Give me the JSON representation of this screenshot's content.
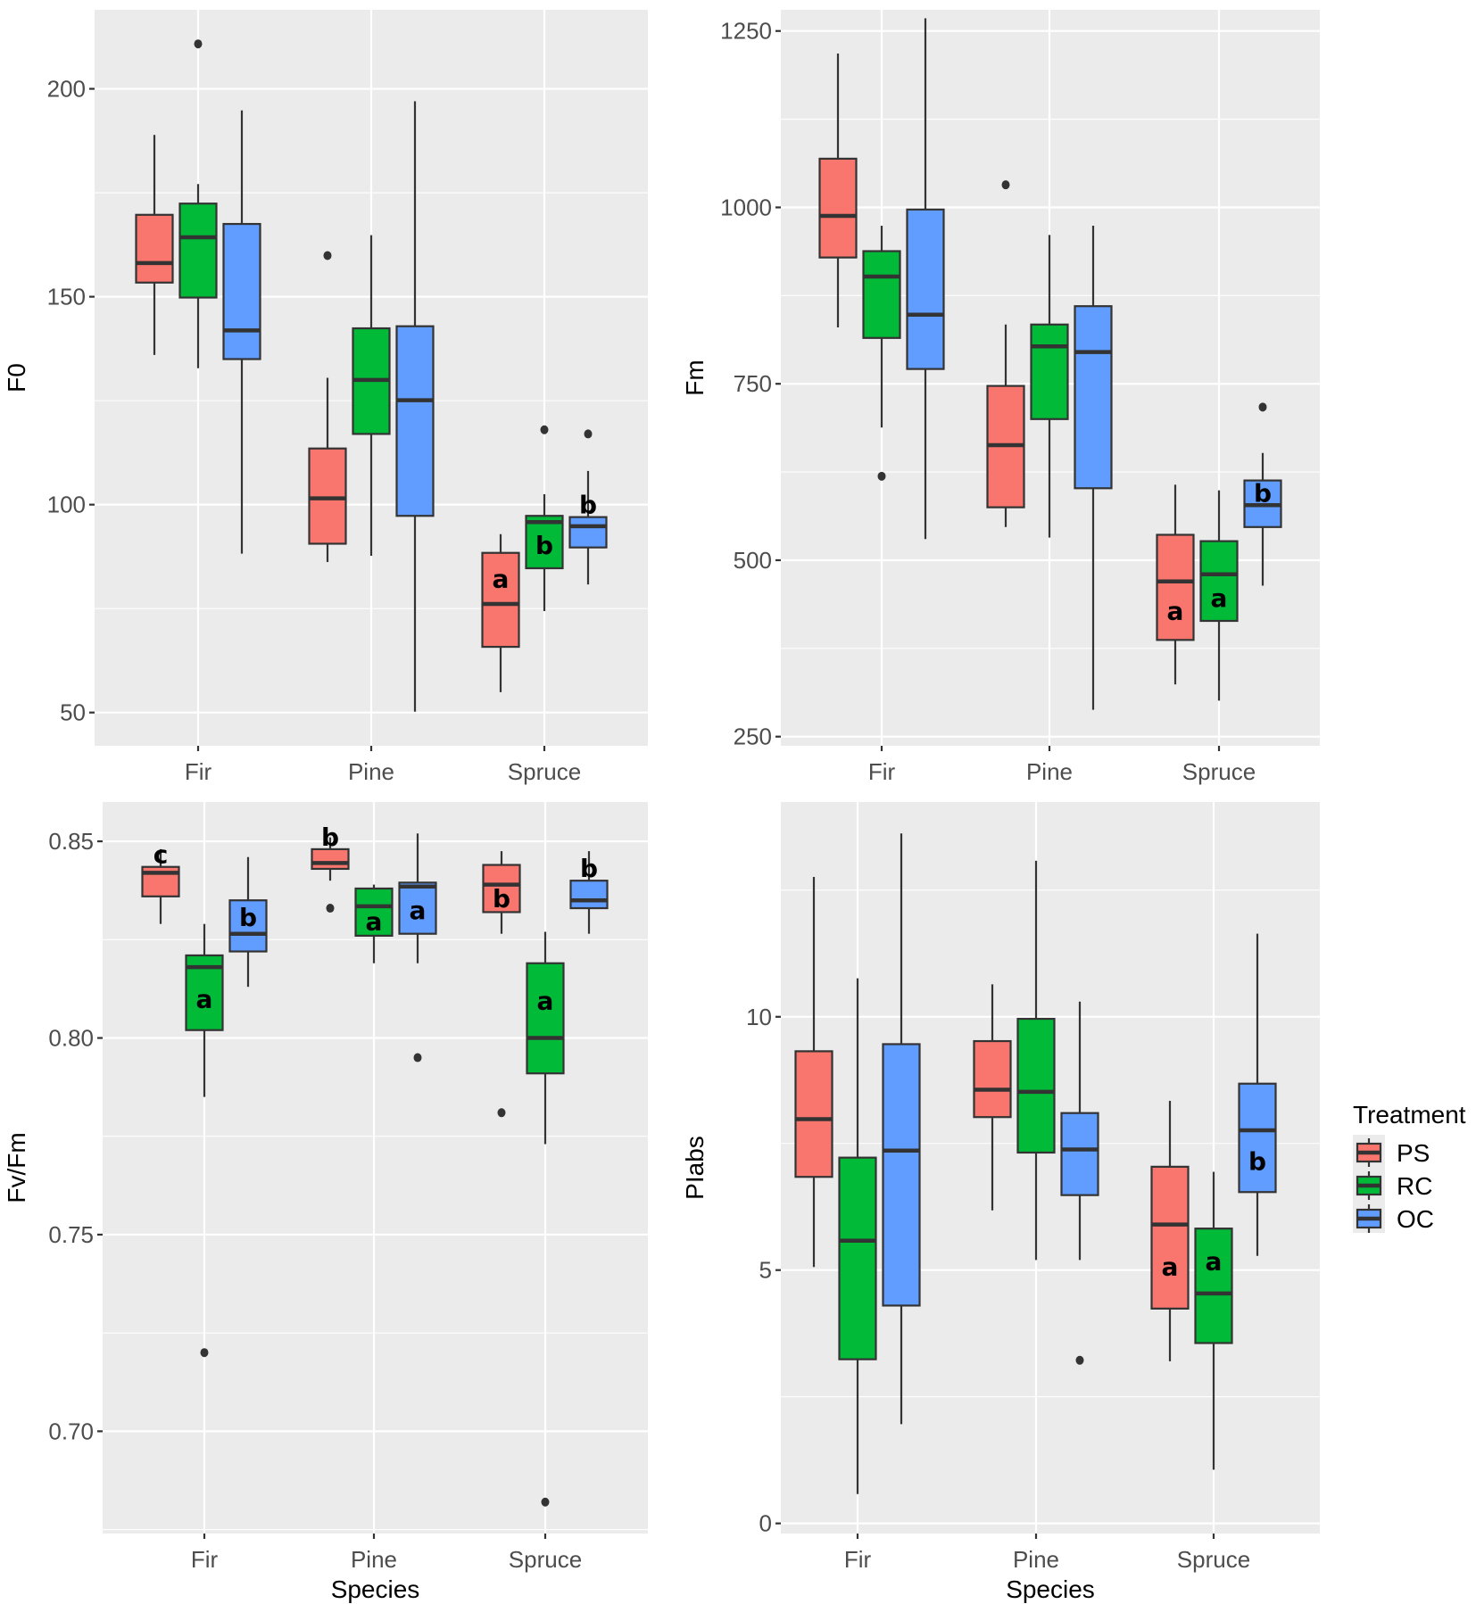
{
  "chart_data": [
    {
      "type": "box",
      "ylabel": "F0",
      "xlabel": "",
      "categories": [
        "Fir",
        "Pine",
        "Spruce"
      ],
      "ylim": [
        42,
        219
      ],
      "yticks": [
        50,
        100,
        150,
        200
      ],
      "ytick_labels": [
        "50",
        "100",
        "150",
        "200"
      ],
      "grid": true,
      "series": [
        {
          "name": "PS",
          "boxes": [
            {
              "min": 136,
              "q1": 153.4,
              "median": 158.1,
              "q3": 169.7,
              "max": 188.9,
              "outliers": [],
              "label": ""
            },
            {
              "min": 86.2,
              "q1": 90.6,
              "median": 101.5,
              "q3": 113.5,
              "max": 130.5,
              "outliers": [
                159.9
              ],
              "label": ""
            },
            {
              "min": 54.9,
              "q1": 65.8,
              "median": 76.1,
              "q3": 88.4,
              "max": 92.9,
              "outliers": [],
              "label": "a"
            }
          ]
        },
        {
          "name": "RC",
          "boxes": [
            {
              "min": 132.8,
              "q1": 149.8,
              "median": 164.3,
              "q3": 172.4,
              "max": 177.1,
              "outliers": [
                210.8
              ],
              "label": ""
            },
            {
              "min": 87.7,
              "q1": 117,
              "median": 130,
              "q3": 142.4,
              "max": 164.8,
              "outliers": [],
              "label": ""
            },
            {
              "min": 74.4,
              "q1": 84.7,
              "median": 95.8,
              "q3": 97.3,
              "max": 102.5,
              "outliers": [
                118
              ],
              "label": "b"
            }
          ]
        },
        {
          "name": "OC",
          "boxes": [
            {
              "min": 88.2,
              "q1": 135,
              "median": 141.9,
              "q3": 167.5,
              "max": 194.8,
              "outliers": [],
              "label": ""
            },
            {
              "min": 50.2,
              "q1": 97.3,
              "median": 125.1,
              "q3": 142.9,
              "max": 197,
              "outliers": [],
              "label": ""
            },
            {
              "min": 80.8,
              "q1": 89.7,
              "median": 94.8,
              "q3": 97,
              "max": 108.1,
              "outliers": [
                117
              ],
              "label": "b"
            }
          ]
        }
      ]
    },
    {
      "type": "box",
      "ylabel": "Fm",
      "xlabel": "",
      "categories": [
        "Fir",
        "Pine",
        "Spruce"
      ],
      "ylim": [
        237,
        1280
      ],
      "yticks": [
        250,
        500,
        750,
        1000,
        1250
      ],
      "ytick_labels": [
        "250",
        "500",
        "750",
        "1000",
        "1250"
      ],
      "grid": true,
      "series": [
        {
          "name": "PS",
          "boxes": [
            {
              "min": 830,
              "q1": 929,
              "median": 988,
              "q3": 1069,
              "max": 1218,
              "outliers": [],
              "label": ""
            },
            {
              "min": 547,
              "q1": 575,
              "median": 663,
              "q3": 747,
              "max": 834,
              "outliers": [
                1032
              ],
              "label": ""
            },
            {
              "min": 324,
              "q1": 387,
              "median": 470,
              "q3": 536,
              "max": 607,
              "outliers": [],
              "label": "a"
            }
          ]
        },
        {
          "name": "RC",
          "boxes": [
            {
              "min": 688,
              "q1": 815,
              "median": 902,
              "q3": 938,
              "max": 974,
              "outliers": [
                619
              ],
              "label": ""
            },
            {
              "min": 532,
              "q1": 700,
              "median": 803,
              "q3": 834,
              "max": 961,
              "outliers": [],
              "label": ""
            },
            {
              "min": 301,
              "q1": 414,
              "median": 480,
              "q3": 527,
              "max": 599,
              "outliers": [],
              "label": "a"
            }
          ]
        },
        {
          "name": "OC",
          "boxes": [
            {
              "min": 530,
              "q1": 771,
              "median": 848,
              "q3": 997,
              "max": 1268,
              "outliers": [],
              "label": ""
            },
            {
              "min": 288,
              "q1": 602,
              "median": 795,
              "q3": 860,
              "max": 974,
              "outliers": [],
              "label": ""
            },
            {
              "min": 464,
              "q1": 547,
              "median": 578,
              "q3": 613,
              "max": 652,
              "outliers": [
                717
              ],
              "label": "b"
            }
          ]
        }
      ]
    },
    {
      "type": "box",
      "ylabel": "Fv/Fm",
      "xlabel": "Species",
      "categories": [
        "Fir",
        "Pine",
        "Spruce"
      ],
      "ylim": [
        0.674,
        0.86
      ],
      "yticks": [
        0.7,
        0.75,
        0.8,
        0.85
      ],
      "ytick_labels": [
        "0.70",
        "0.75",
        "0.80",
        "0.85"
      ],
      "grid": true,
      "series": [
        {
          "name": "PS",
          "boxes": [
            {
              "min": 0.829,
              "q1": 0.836,
              "median": 0.842,
              "q3": 0.8435,
              "max": 0.848,
              "outliers": [],
              "label": "c"
            },
            {
              "min": 0.84,
              "q1": 0.843,
              "median": 0.8445,
              "q3": 0.848,
              "max": 0.851,
              "outliers": [
                0.833
              ],
              "label": "b"
            },
            {
              "min": 0.8265,
              "q1": 0.832,
              "median": 0.839,
              "q3": 0.844,
              "max": 0.8475,
              "outliers": [
                0.781
              ],
              "label": "b"
            }
          ]
        },
        {
          "name": "RC",
          "boxes": [
            {
              "min": 0.785,
              "q1": 0.802,
              "median": 0.818,
              "q3": 0.821,
              "max": 0.829,
              "outliers": [
                0.72
              ],
              "label": "a"
            },
            {
              "min": 0.819,
              "q1": 0.826,
              "median": 0.8335,
              "q3": 0.838,
              "max": 0.839,
              "outliers": [],
              "label": "a"
            },
            {
              "min": 0.773,
              "q1": 0.791,
              "median": 0.8,
              "q3": 0.819,
              "max": 0.827,
              "outliers": [
                0.682
              ],
              "label": "a"
            }
          ]
        },
        {
          "name": "OC",
          "boxes": [
            {
              "min": 0.813,
              "q1": 0.822,
              "median": 0.8265,
              "q3": 0.835,
              "max": 0.846,
              "outliers": [],
              "label": "b"
            },
            {
              "min": 0.819,
              "q1": 0.8265,
              "median": 0.8385,
              "q3": 0.8395,
              "max": 0.852,
              "outliers": [
                0.795
              ],
              "label": "a"
            },
            {
              "min": 0.8265,
              "q1": 0.833,
              "median": 0.835,
              "q3": 0.84,
              "max": 0.8475,
              "outliers": [],
              "label": "b"
            }
          ]
        }
      ]
    },
    {
      "type": "box",
      "ylabel": "PIabs",
      "xlabel": "Species",
      "categories": [
        "Fir",
        "Pine",
        "Spruce"
      ],
      "ylim": [
        -0.2,
        14.24
      ],
      "yticks": [
        0,
        5,
        10
      ],
      "ytick_labels": [
        "0",
        "5",
        "10"
      ],
      "grid": true,
      "series": [
        {
          "name": "PS",
          "boxes": [
            {
              "min": 5.06,
              "q1": 6.84,
              "median": 7.98,
              "q3": 9.32,
              "max": 12.76,
              "outliers": [],
              "label": ""
            },
            {
              "min": 6.18,
              "q1": 8.02,
              "median": 8.56,
              "q3": 9.52,
              "max": 10.64,
              "outliers": [],
              "label": ""
            },
            {
              "min": 3.2,
              "q1": 4.24,
              "median": 5.9,
              "q3": 7.04,
              "max": 8.34,
              "outliers": [],
              "label": "a"
            }
          ]
        },
        {
          "name": "RC",
          "boxes": [
            {
              "min": 0.58,
              "q1": 3.24,
              "median": 5.58,
              "q3": 7.22,
              "max": 10.76,
              "outliers": [],
              "label": ""
            },
            {
              "min": 5.2,
              "q1": 7.32,
              "median": 8.52,
              "q3": 9.96,
              "max": 13.08,
              "outliers": [],
              "label": ""
            },
            {
              "min": 1.06,
              "q1": 3.56,
              "median": 4.54,
              "q3": 5.82,
              "max": 6.94,
              "outliers": [],
              "label": "a"
            }
          ]
        },
        {
          "name": "OC",
          "boxes": [
            {
              "min": 1.96,
              "q1": 4.3,
              "median": 7.36,
              "q3": 9.46,
              "max": 13.62,
              "outliers": [],
              "label": ""
            },
            {
              "min": 5.2,
              "q1": 6.48,
              "median": 7.38,
              "q3": 8.1,
              "max": 10.3,
              "outliers": [
                3.22
              ],
              "label": ""
            },
            {
              "min": 5.28,
              "q1": 6.54,
              "median": 7.76,
              "q3": 8.68,
              "max": 11.64,
              "outliers": [],
              "label": "b"
            }
          ]
        }
      ]
    }
  ],
  "legend": {
    "title": "Treatment",
    "placement": "right",
    "items": [
      {
        "label": "PS",
        "color": "#f8766d"
      },
      {
        "label": "RC",
        "color": "#00ba38"
      },
      {
        "label": "OC",
        "color": "#619cff"
      }
    ]
  },
  "colors": {
    "panel_background": "#ebebeb",
    "grid": "#ffffff",
    "box_outline": "#333333"
  }
}
